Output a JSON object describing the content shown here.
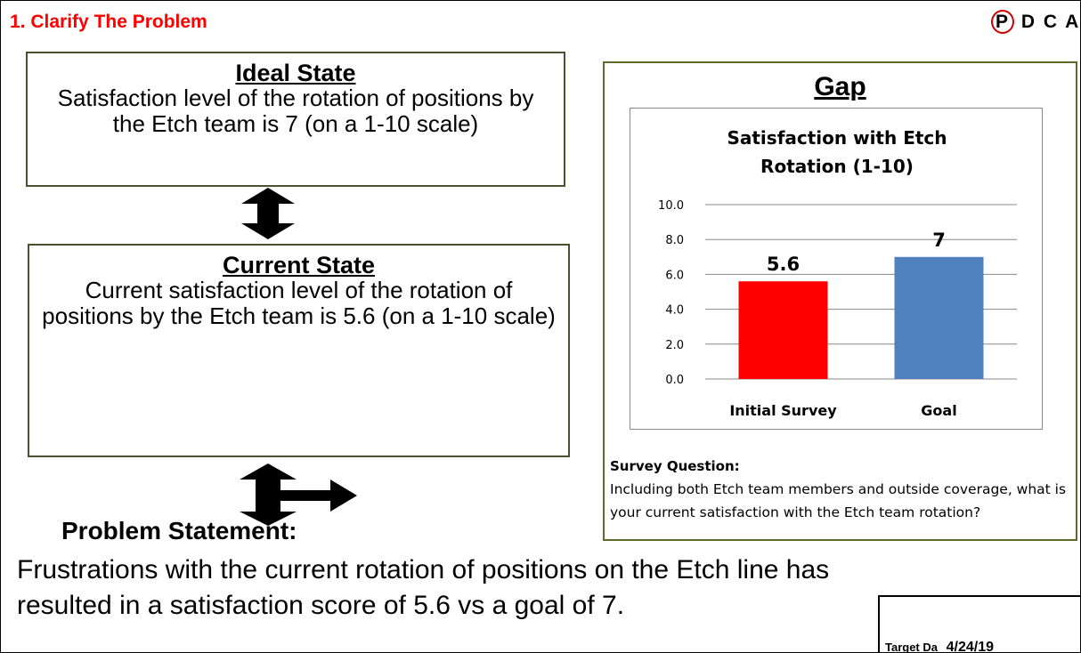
{
  "header": {
    "title": "1. Clarify The Problem",
    "pdca": [
      "P",
      "D",
      "C",
      "A"
    ]
  },
  "ideal_state": {
    "title": "Ideal State",
    "text": "Satisfaction level of the rotation of positions by the Etch team is 7 (on a 1-10 scale)"
  },
  "current_state": {
    "title": "Current State",
    "text": "Current satisfaction level of the rotation of positions by the Etch team is 5.6 (on a 1-10 scale)"
  },
  "gap": {
    "title": "Gap",
    "survey_label": "Survey Question:",
    "survey_text": "Including both Etch team members and outside coverage, what is your current satisfaction with the Etch team rotation?"
  },
  "chart_data": {
    "type": "bar",
    "title": "Satisfaction with Etch Rotation (1-10)",
    "categories": [
      "Initial Survey",
      "Goal"
    ],
    "values": [
      5.6,
      7
    ],
    "value_labels": [
      "5.6",
      "7"
    ],
    "colors": [
      "#ff0000",
      "#4f81bd"
    ],
    "ylim": [
      0,
      10
    ],
    "yticks": [
      {
        "value": 0,
        "label": "0.0"
      },
      {
        "value": 2,
        "label": "2.0"
      },
      {
        "value": 4,
        "label": "4.0"
      },
      {
        "value": 6,
        "label": "6.0"
      },
      {
        "value": 8,
        "label": "8.0"
      },
      {
        "value": 10,
        "label": "10.0"
      }
    ],
    "grid": true
  },
  "problem": {
    "title": "Problem Statement:",
    "text": "Frustrations with the current rotation of positions on the Etch line has resulted in a satisfaction score of 5.6 vs a goal of 7."
  },
  "target": {
    "label": "Target Da",
    "date": "4/24/19"
  }
}
